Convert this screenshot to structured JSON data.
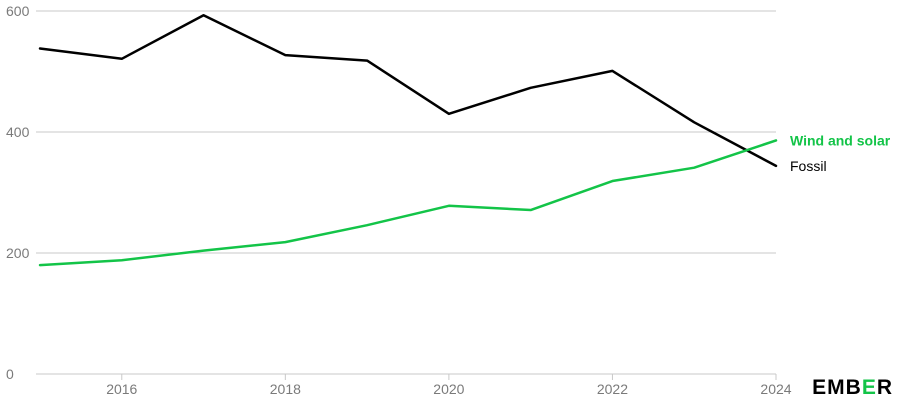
{
  "chart_data": {
    "type": "line",
    "title": "",
    "xlabel": "",
    "ylabel": "",
    "x": [
      2015,
      2016,
      2017,
      2018,
      2019,
      2020,
      2021,
      2022,
      2023,
      2024
    ],
    "xlim": [
      2015,
      2024
    ],
    "ylim": [
      0,
      600
    ],
    "x_ticks": [
      "2016",
      "2018",
      "2020",
      "2022",
      "2024"
    ],
    "y_ticks": [
      "0",
      "200",
      "400",
      "600"
    ],
    "grid": "horizontal",
    "legend": "end-of-line labels",
    "series": [
      {
        "name": "Fossil",
        "color": "#000000",
        "values": [
          538,
          521,
          593,
          527,
          518,
          430,
          473,
          501,
          416,
          344
        ]
      },
      {
        "name": "Wind and solar",
        "color": "#13c448",
        "values": [
          180,
          188,
          204,
          218,
          246,
          278,
          271,
          319,
          341,
          386
        ]
      }
    ]
  },
  "logo": {
    "text": "EMBER",
    "color": "#000000",
    "accent": "#13c448"
  }
}
